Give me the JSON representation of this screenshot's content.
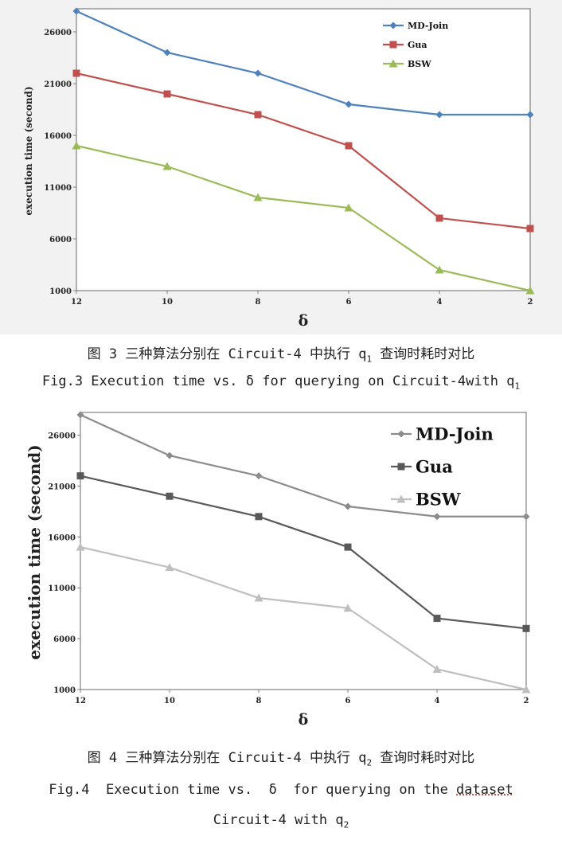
{
  "charts": [
    {
      "chart_data": {
        "type": "line",
        "categories": [
          "12",
          "10",
          "8",
          "6",
          "4",
          "2"
        ],
        "xlabel": "δ",
        "ylabel": "execution time (second)",
        "ylim": [
          1000,
          28000
        ],
        "yticks": [
          "1000",
          "6000",
          "11000",
          "16000",
          "21000",
          "26000"
        ],
        "grid": false,
        "legend": "top-right",
        "series": [
          {
            "name": "MD-Join",
            "values": [
              28000,
              24000,
              22000,
              19000,
              18000,
              18000
            ],
            "color": "#4f81bd",
            "marker": "diamond"
          },
          {
            "name": "Gua",
            "values": [
              22000,
              20000,
              18000,
              15000,
              8000,
              7000
            ],
            "color": "#c0504d",
            "marker": "square"
          },
          {
            "name": "BSW",
            "values": [
              15000,
              13000,
              10000,
              9000,
              3000,
              1000
            ],
            "color": "#9bbb59",
            "marker": "triangle"
          }
        ]
      },
      "caption_cn_prefix": "图 3 三种算法分别在 Circuit-4 中执行 q",
      "caption_cn_sub": "1",
      "caption_cn_suffix": " 查询时耗时对比",
      "caption_en_prefix": "Fig.3 Execution time vs. δ for querying on Circuit-4with q",
      "caption_en_sub": "1"
    },
    {
      "chart_data": {
        "type": "line",
        "categories": [
          "12",
          "10",
          "8",
          "6",
          "4",
          "2"
        ],
        "xlabel": "δ",
        "ylabel": "execution time (second)",
        "ylim": [
          1000,
          28000
        ],
        "yticks": [
          "1000",
          "6000",
          "11000",
          "16000",
          "21000",
          "26000"
        ],
        "grid": false,
        "legend": "top-right",
        "series": [
          {
            "name": "MD-Join",
            "values": [
              28000,
              24000,
              22000,
              19000,
              18000,
              18000
            ],
            "color": "#8c8c8c",
            "marker": "diamond"
          },
          {
            "name": "Gua",
            "values": [
              22000,
              20000,
              18000,
              15000,
              8000,
              7000
            ],
            "color": "#595959",
            "marker": "square"
          },
          {
            "name": "BSW",
            "values": [
              15000,
              13000,
              10000,
              9000,
              3000,
              1000
            ],
            "color": "#bfbfbf",
            "marker": "triangle"
          }
        ]
      },
      "caption_cn_prefix": "图 4 三种算法分别在 Circuit-4 中执行 q",
      "caption_cn_sub": "2",
      "caption_cn_suffix": " 查询时耗时对比",
      "caption_en_line1_main": "Fig.4  Execution time vs.  δ  for querying on the ",
      "caption_en_line1_dotted": "dataset",
      "caption_en_line2_prefix": "Circuit-4 with q",
      "caption_en_line2_sub": "2"
    }
  ]
}
